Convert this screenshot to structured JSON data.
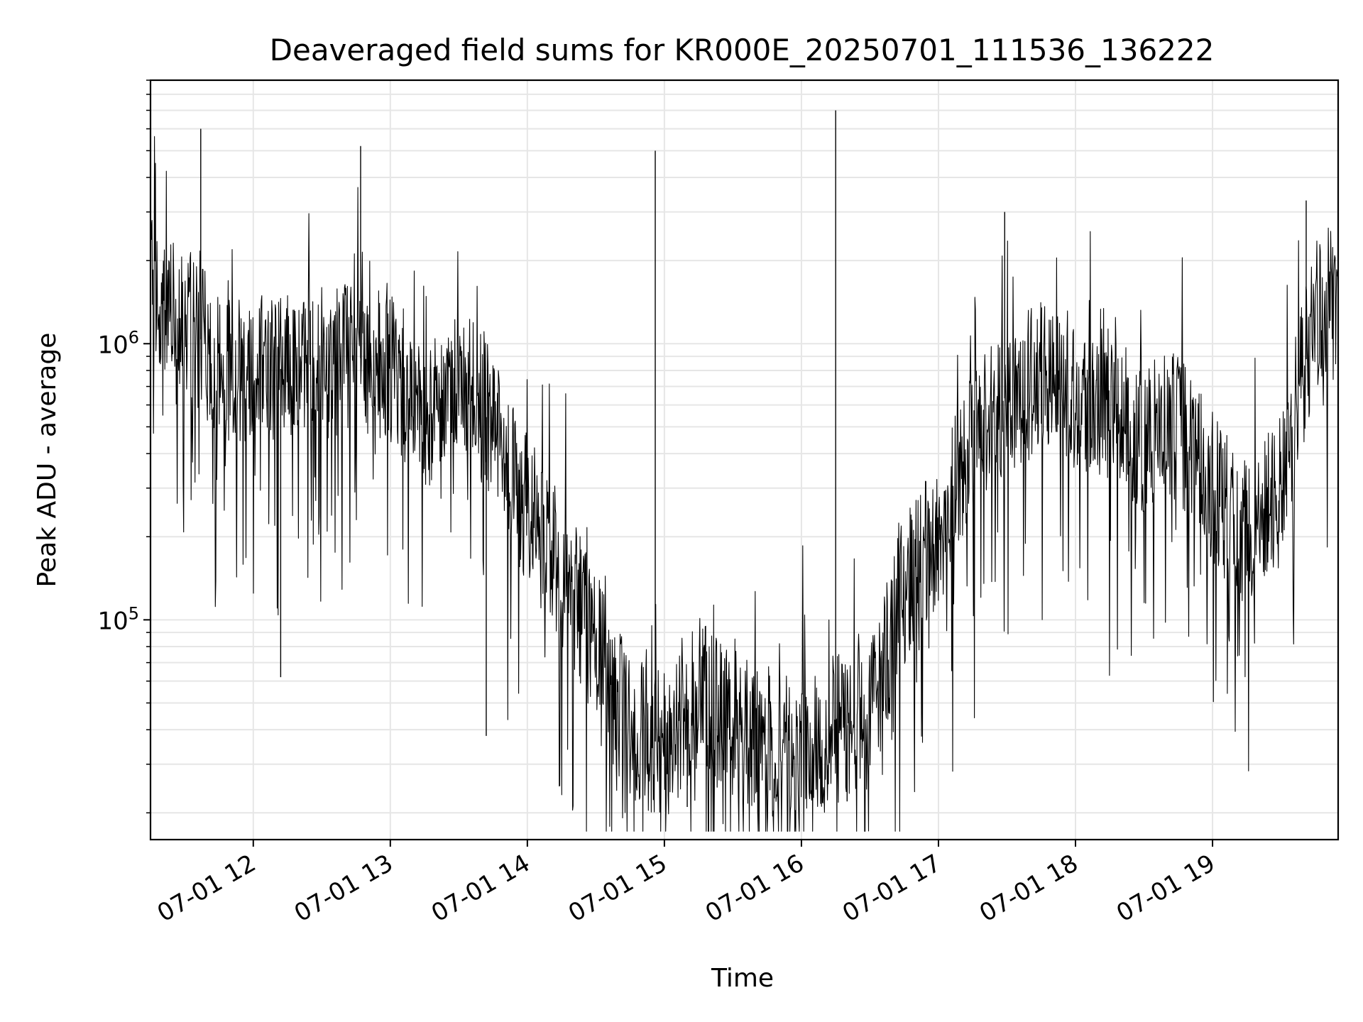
{
  "chart_data": {
    "type": "line",
    "title": "Deaveraged field sums for KR000E_20250701_111536_136222",
    "xlabel": "Time",
    "ylabel": "Peak ADU - average",
    "x_axis": {
      "kind": "time",
      "range": [
        "2025-07-01 11:15",
        "2025-07-01 19:55"
      ],
      "ticks": [
        {
          "value": "2025-07-01 12:00",
          "label": "07-01 12"
        },
        {
          "value": "2025-07-01 13:00",
          "label": "07-01 13"
        },
        {
          "value": "2025-07-01 14:00",
          "label": "07-01 14"
        },
        {
          "value": "2025-07-01 15:00",
          "label": "07-01 15"
        },
        {
          "value": "2025-07-01 16:00",
          "label": "07-01 16"
        },
        {
          "value": "2025-07-01 17:00",
          "label": "07-01 17"
        },
        {
          "value": "2025-07-01 18:00",
          "label": "07-01 18"
        },
        {
          "value": "2025-07-01 19:00",
          "label": "07-01 19"
        }
      ]
    },
    "y_axis": {
      "scale": "log",
      "range": [
        16000,
        9000000
      ],
      "major_ticks": [
        {
          "value": 100000,
          "base": "10",
          "exp": "5"
        },
        {
          "value": 1000000,
          "base": "10",
          "exp": "6"
        }
      ]
    },
    "grid": true,
    "series": [
      {
        "color": "#000000",
        "points": [
          {
            "x": "2025-07-01 11:15",
            "y": 1500000
          },
          {
            "x": "2025-07-01 11:30",
            "y": 1300000
          },
          {
            "x": "2025-07-01 11:45",
            "y": 800000
          },
          {
            "x": "2025-07-01 12:00",
            "y": 850000
          },
          {
            "x": "2025-07-01 12:15",
            "y": 800000
          },
          {
            "x": "2025-07-01 12:30",
            "y": 850000
          },
          {
            "x": "2025-07-01 12:45",
            "y": 900000
          },
          {
            "x": "2025-07-01 13:00",
            "y": 800000
          },
          {
            "x": "2025-07-01 13:15",
            "y": 550000
          },
          {
            "x": "2025-07-01 13:30",
            "y": 750000
          },
          {
            "x": "2025-07-01 13:45",
            "y": 500000
          },
          {
            "x": "2025-07-01 14:00",
            "y": 250000
          },
          {
            "x": "2025-07-01 14:15",
            "y": 150000
          },
          {
            "x": "2025-07-01 14:30",
            "y": 80000
          },
          {
            "x": "2025-07-01 14:45",
            "y": 40000
          },
          {
            "x": "2025-07-01 15:00",
            "y": 35000
          },
          {
            "x": "2025-07-01 15:15",
            "y": 55000
          },
          {
            "x": "2025-07-01 15:30",
            "y": 40000
          },
          {
            "x": "2025-07-01 15:45",
            "y": 36000
          },
          {
            "x": "2025-07-01 16:00",
            "y": 36000
          },
          {
            "x": "2025-07-01 16:15",
            "y": 40000
          },
          {
            "x": "2025-07-01 16:30",
            "y": 45000
          },
          {
            "x": "2025-07-01 16:45",
            "y": 130000
          },
          {
            "x": "2025-07-01 17:00",
            "y": 200000
          },
          {
            "x": "2025-07-01 17:15",
            "y": 450000
          },
          {
            "x": "2025-07-01 17:30",
            "y": 650000
          },
          {
            "x": "2025-07-01 17:45",
            "y": 750000
          },
          {
            "x": "2025-07-01 18:00",
            "y": 650000
          },
          {
            "x": "2025-07-01 18:15",
            "y": 600000
          },
          {
            "x": "2025-07-01 18:30",
            "y": 450000
          },
          {
            "x": "2025-07-01 18:45",
            "y": 500000
          },
          {
            "x": "2025-07-01 19:00",
            "y": 300000
          },
          {
            "x": "2025-07-01 19:15",
            "y": 200000
          },
          {
            "x": "2025-07-01 19:30",
            "y": 300000
          },
          {
            "x": "2025-07-01 19:45",
            "y": 1300000
          },
          {
            "x": "2025-07-01 19:55",
            "y": 1500000
          }
        ],
        "spikes": [
          {
            "x": "2025-07-01 11:37",
            "y": 6000000
          },
          {
            "x": "2025-07-01 12:47",
            "y": 5200000
          },
          {
            "x": "2025-07-01 14:56",
            "y": 5000000
          },
          {
            "x": "2025-07-01 16:15",
            "y": 7000000
          },
          {
            "x": "2025-07-01 17:29",
            "y": 3000000
          },
          {
            "x": "2025-07-01 19:41",
            "y": 3300000
          },
          {
            "x": "2025-07-01 12:12",
            "y": 62000
          },
          {
            "x": "2025-07-01 13:42",
            "y": 38000
          },
          {
            "x": "2025-07-01 15:10",
            "y": 21000
          },
          {
            "x": "2025-07-01 16:20",
            "y": 22000
          }
        ]
      }
    ]
  }
}
